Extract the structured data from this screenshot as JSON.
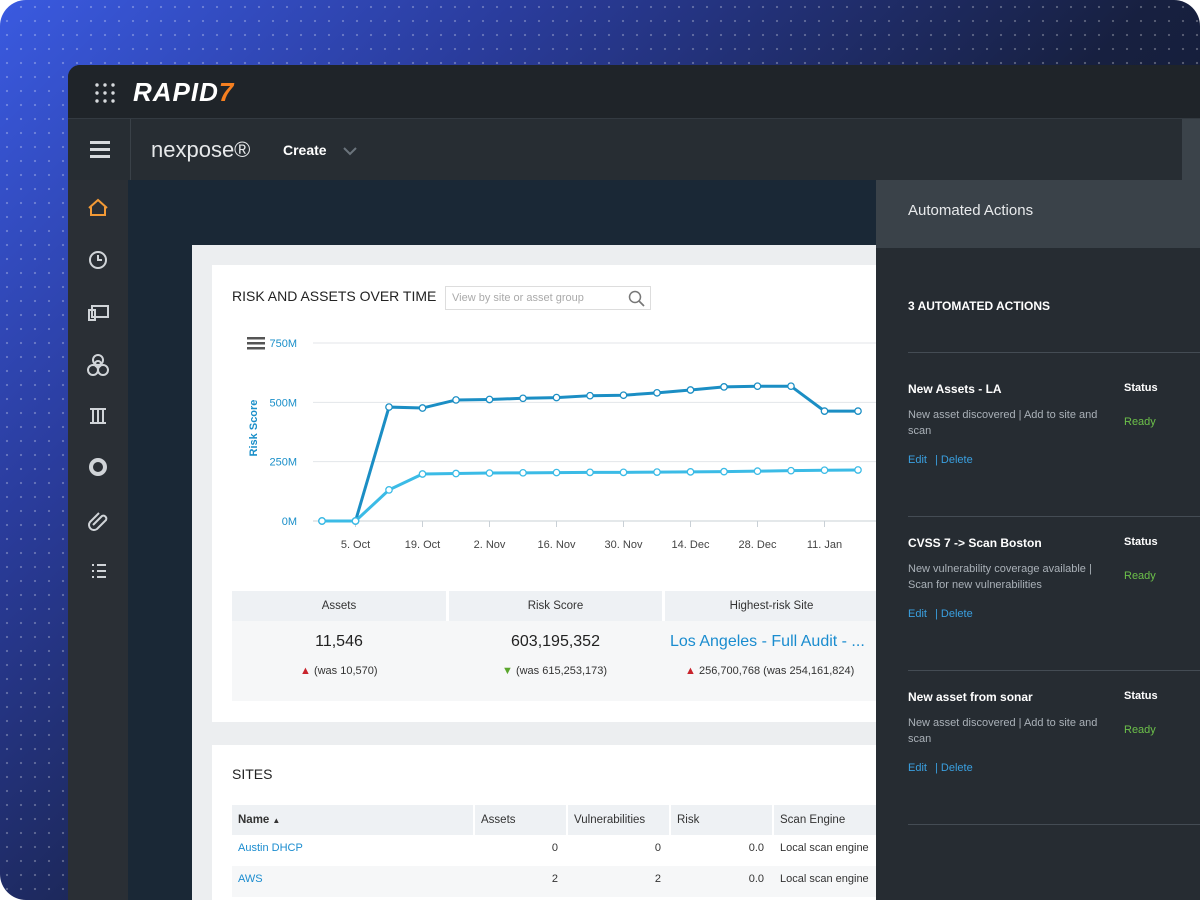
{
  "brand": "RAPID",
  "brand_mark": "7",
  "product": "nexpose®",
  "nav": {
    "create": "Create"
  },
  "chart_data": {
    "type": "line",
    "title": "RISK AND ASSETS OVER TIME",
    "search_placeholder": "View by site or asset group",
    "y_label": "Risk Score",
    "categories": [
      null,
      "5. Oct",
      null,
      "19. Oct",
      null,
      "2. Nov",
      null,
      "16. Nov",
      null,
      "30. Nov",
      null,
      "14. Dec",
      null,
      "28. Dec",
      null,
      "11. Jan",
      null
    ],
    "series": [
      {
        "color": "#1b8ec4",
        "values": [
          0,
          0,
          480,
          476,
          510,
          512,
          517,
          520,
          528,
          530,
          540,
          552,
          565,
          568,
          568,
          463,
          463
        ]
      },
      {
        "color": "#3bbbe6",
        "values": [
          0,
          0,
          131,
          198,
          200,
          202,
          203,
          204,
          205,
          205,
          206,
          207,
          208,
          210,
          212,
          214,
          215
        ]
      }
    ],
    "ylim": [
      0,
      750
    ],
    "yticks": [
      {
        "value": 0,
        "label": "0M"
      },
      {
        "value": 250,
        "label": "250M"
      },
      {
        "value": 500,
        "label": "500M"
      },
      {
        "value": 750,
        "label": "750M"
      }
    ],
    "grid": true
  },
  "stats": {
    "assets": {
      "label": "Assets",
      "value": "11,546",
      "was": "(was 10,570)"
    },
    "risk": {
      "label": "Risk Score",
      "value": "603,195,352",
      "was": "(was 615,253,173)"
    },
    "site": {
      "label": "Highest-risk Site",
      "value": "Los Angeles - Full Audit - ...",
      "was": "256,700,768 (was 254,161,824)"
    }
  },
  "sites": {
    "title": "SITES",
    "columns": [
      "Name",
      "Assets",
      "Vulnerabilities",
      "Risk",
      "Scan Engine"
    ],
    "rows": [
      [
        "Austin DHCP",
        "0",
        "0",
        "0.0",
        "Local scan engine"
      ],
      [
        "AWS",
        "2",
        "2",
        "0.0",
        "Local scan engine"
      ]
    ]
  },
  "automated": {
    "header": "Automated Actions",
    "count": "3 AUTOMATED ACTIONS",
    "actions": [
      {
        "title": "New Assets - LA",
        "status_label": "Status",
        "status": "Ready",
        "description": "New asset discovered | Add to site and scan",
        "edit": "Edit",
        "delete": "| Delete"
      },
      {
        "title": "CVSS 7 -> Scan Boston",
        "status_label": "Status",
        "status": "Ready",
        "description": "New vulnerability coverage available | Scan for new vulnerabilities",
        "edit": "Edit",
        "delete": "| Delete"
      },
      {
        "title": "New asset from sonar",
        "status_label": "Status",
        "status": "Ready",
        "description": "New asset discovered | Add to site and scan",
        "edit": "Edit",
        "delete": "| Delete"
      }
    ]
  }
}
